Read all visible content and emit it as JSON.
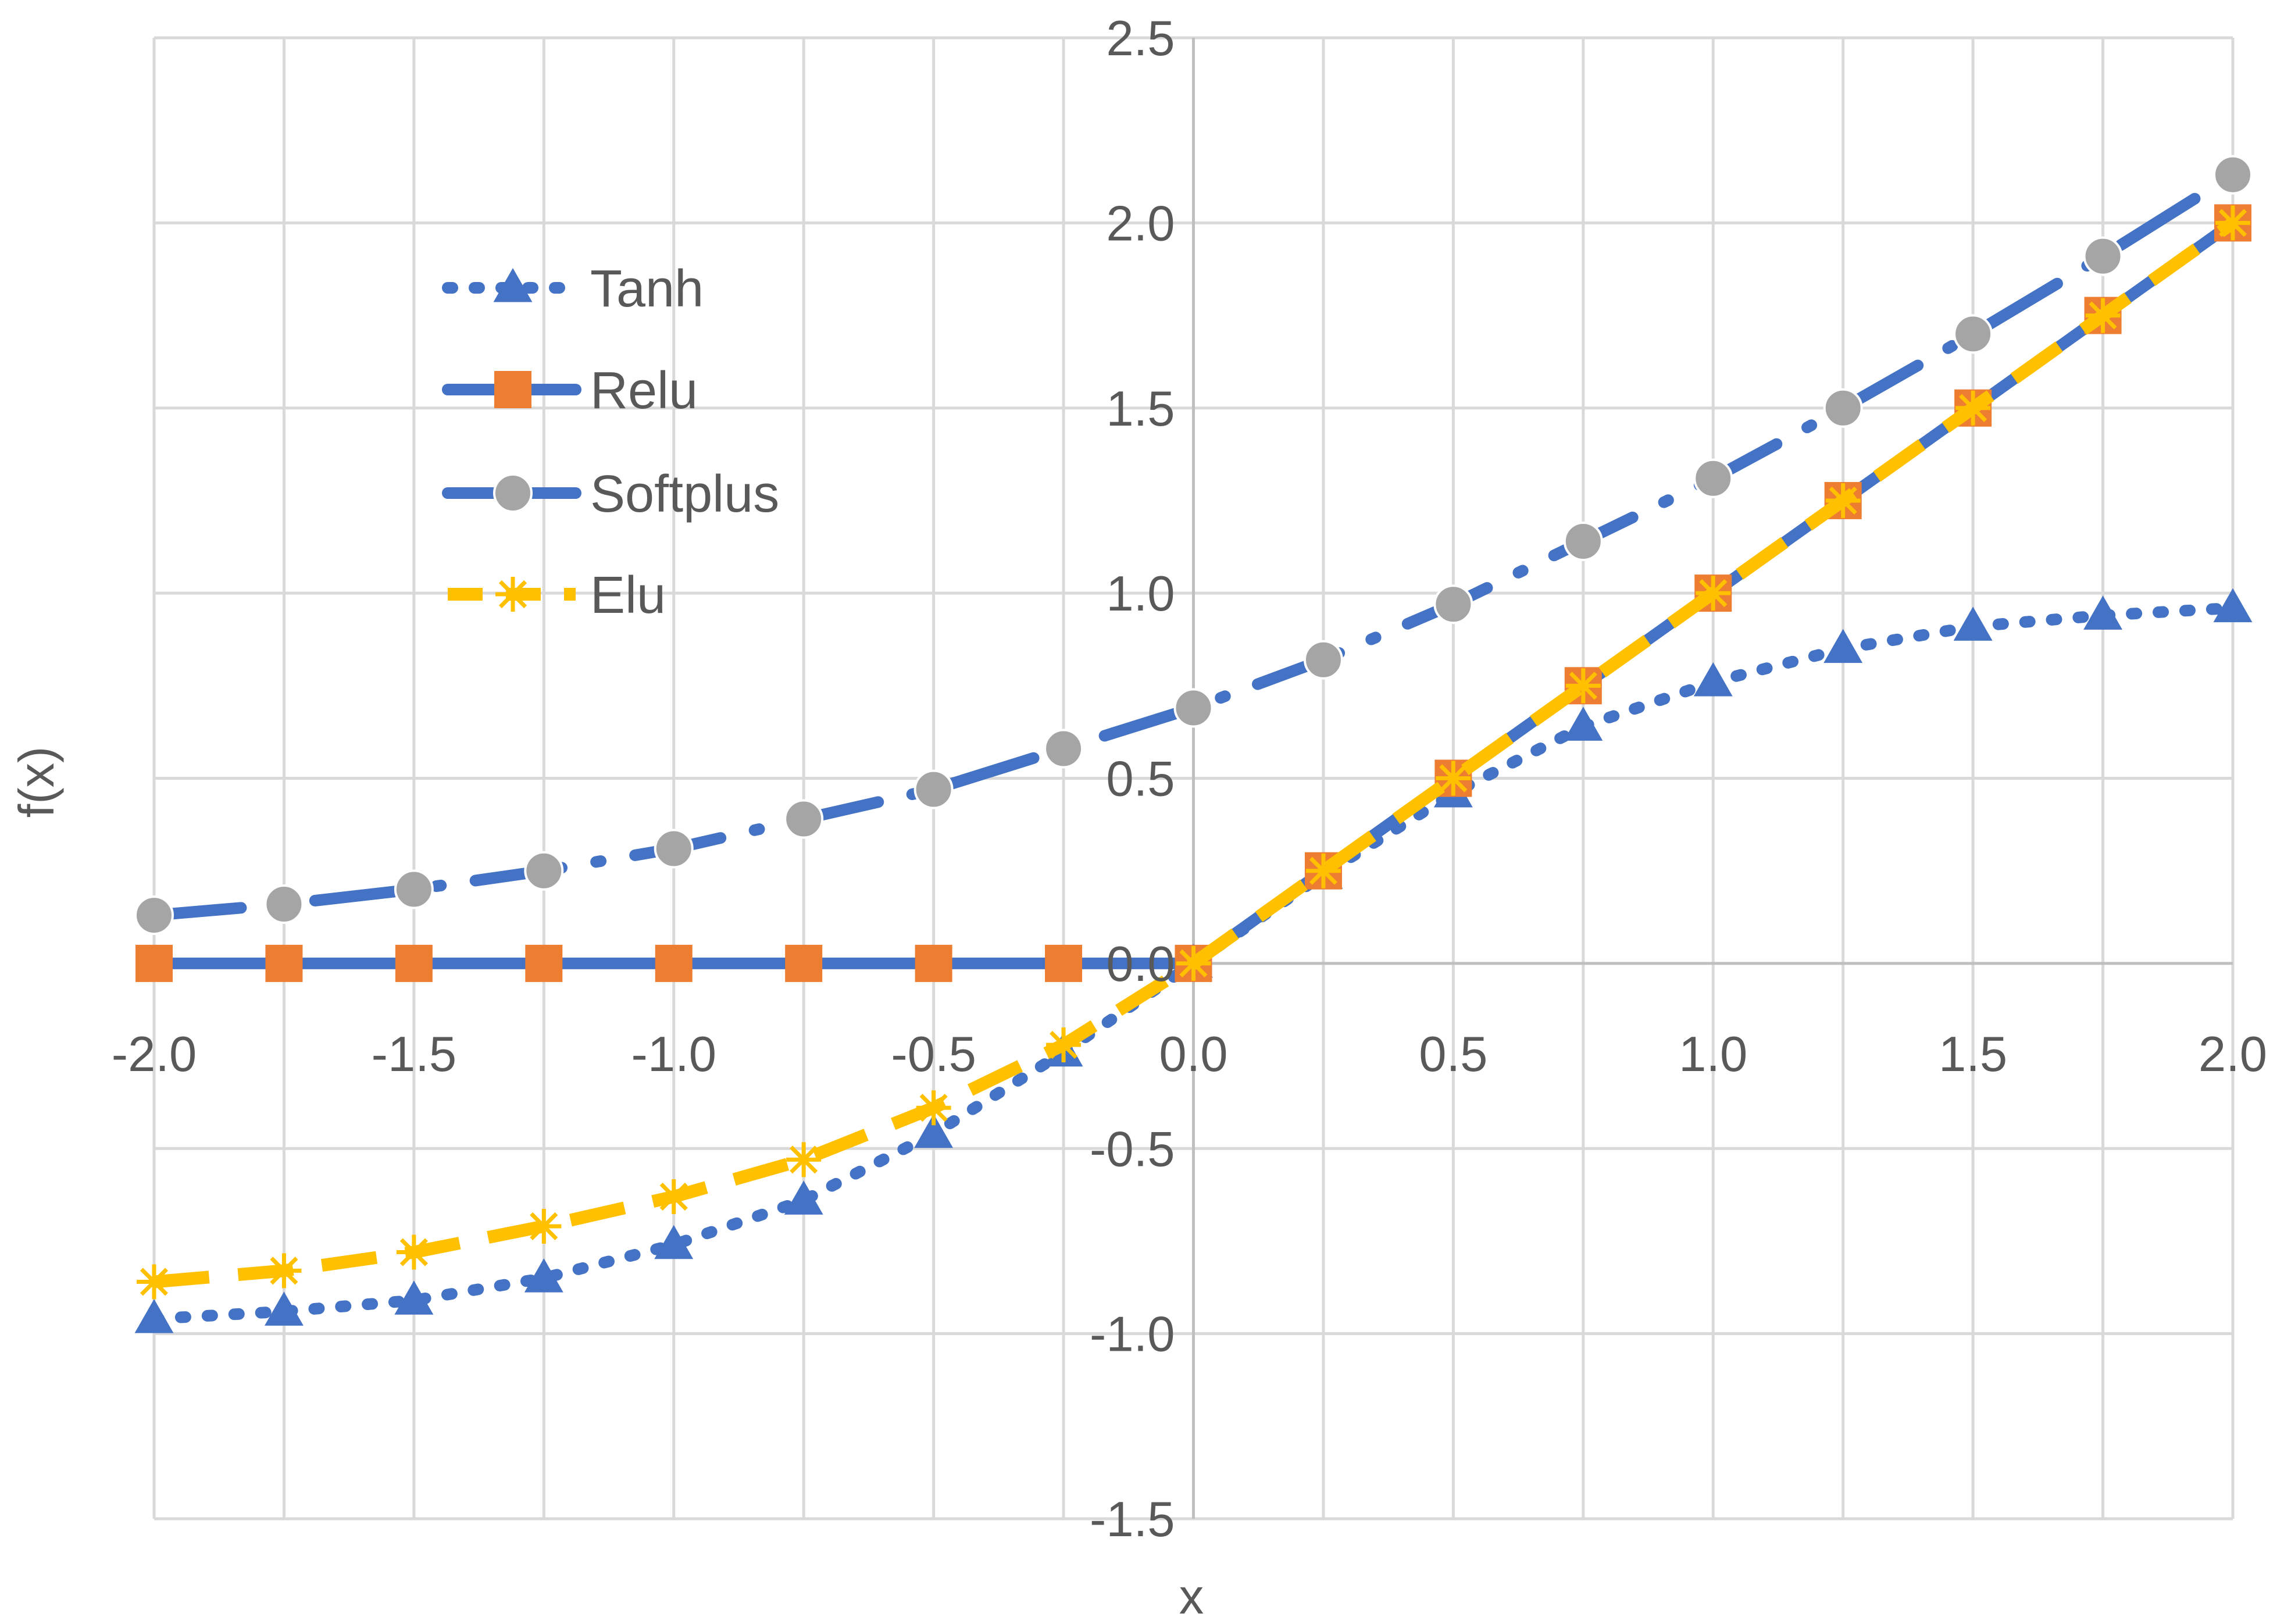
{
  "chart_data": {
    "type": "line",
    "title": "",
    "xlabel": "x",
    "ylabel": "f(x)",
    "xlim": [
      -2.0,
      2.0
    ],
    "ylim": [
      -1.5,
      2.5
    ],
    "x_ticks": [
      "-2.0",
      "-1.5",
      "-1.0",
      "-0.5",
      "0.0",
      "0.5",
      "1.0",
      "1.5",
      "2.0"
    ],
    "y_ticks": [
      "-1.5",
      "-1.0",
      "-0.5",
      "0.0",
      "0.5",
      "1.0",
      "1.5",
      "2.0",
      "2.5"
    ],
    "x": [
      -2.0,
      -1.75,
      -1.5,
      -1.25,
      -1.0,
      -0.75,
      -0.5,
      -0.25,
      0.0,
      0.25,
      0.5,
      0.75,
      1.0,
      1.25,
      1.5,
      1.75,
      2.0
    ],
    "grid": true,
    "legend_position": "top-left",
    "series": [
      {
        "name": "Tanh",
        "color": "#4472C4",
        "marker": "triangle",
        "line_style": "dotted",
        "values": [
          -0.96,
          -0.94,
          -0.91,
          -0.85,
          -0.76,
          -0.64,
          -0.46,
          -0.24,
          0.0,
          0.24,
          0.46,
          0.64,
          0.76,
          0.85,
          0.91,
          0.94,
          0.96
        ]
      },
      {
        "name": "Relu",
        "color": "#4472C4",
        "marker": "square",
        "marker_color": "#ED7D31",
        "line_style": "solid",
        "values": [
          0.0,
          0.0,
          0.0,
          0.0,
          0.0,
          0.0,
          0.0,
          0.0,
          0.0,
          0.25,
          0.5,
          0.75,
          1.0,
          1.25,
          1.5,
          1.75,
          2.0
        ]
      },
      {
        "name": "Softplus",
        "color": "#4472C4",
        "marker": "circle",
        "marker_color": "#A5A5A5",
        "line_style": "dashdot",
        "values": [
          0.13,
          0.16,
          0.2,
          0.25,
          0.31,
          0.39,
          0.47,
          0.58,
          0.69,
          0.82,
          0.97,
          1.14,
          1.31,
          1.5,
          1.7,
          1.91,
          2.13
        ]
      },
      {
        "name": "Elu",
        "color": "#FFC000",
        "marker": "asterisk",
        "marker_color": "#FFC000",
        "line_style": "dashed",
        "values": [
          -0.86,
          -0.83,
          -0.78,
          -0.71,
          -0.63,
          -0.53,
          -0.39,
          -0.22,
          0.0,
          0.25,
          0.5,
          0.75,
          1.0,
          1.25,
          1.5,
          1.75,
          2.0
        ]
      }
    ]
  }
}
